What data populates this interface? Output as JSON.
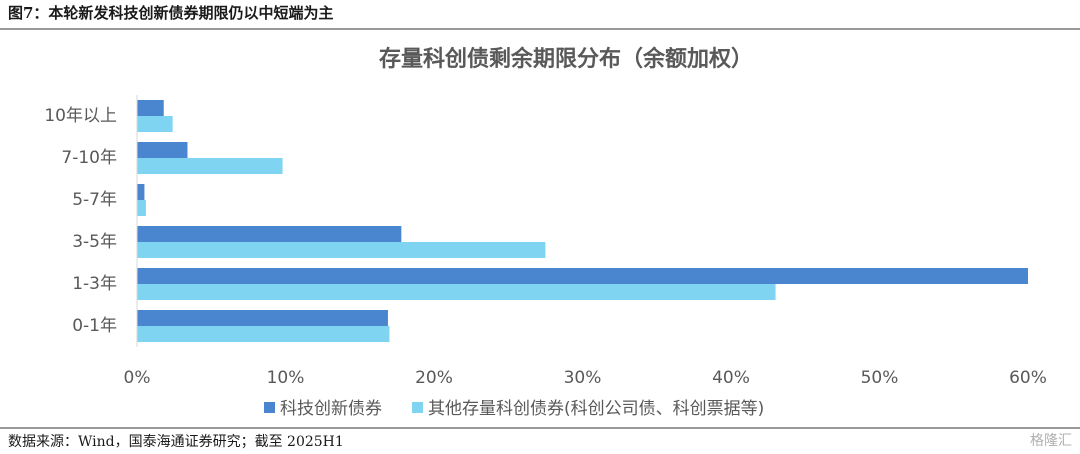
{
  "header": {
    "title": "图7：本轮新发科技创新债券期限仍以中短端为主"
  },
  "chart_data": {
    "type": "hbar",
    "title": "存量科创债剩余期限分布（余额加权）",
    "categories": [
      "10年以上",
      "7-10年",
      "5-7年",
      "3-5年",
      "1-3年",
      "0-1年"
    ],
    "series": [
      {
        "name": "科技创新债券",
        "color": "#4a86d0",
        "values": [
          1.8,
          3.4,
          0.5,
          17.8,
          60.0,
          16.9
        ]
      },
      {
        "name": "其他存量科创债券(科创公司债、科创票据等)",
        "color": "#7fd4f2",
        "values": [
          2.4,
          9.8,
          0.6,
          27.5,
          43.0,
          17.0
        ]
      }
    ],
    "xlim": [
      0,
      60
    ],
    "xticks": [
      {
        "value": 0,
        "label": "0%"
      },
      {
        "value": 10,
        "label": "10%"
      },
      {
        "value": 20,
        "label": "20%"
      },
      {
        "value": 30,
        "label": "30%"
      },
      {
        "value": 40,
        "label": "40%"
      },
      {
        "value": 50,
        "label": "50%"
      },
      {
        "value": 60,
        "label": "60%"
      }
    ],
    "legend": "bottom"
  },
  "footer": {
    "source": "数据来源：Wind，国泰海通证券研究；截至 2025H1",
    "watermark": "格隆汇"
  }
}
